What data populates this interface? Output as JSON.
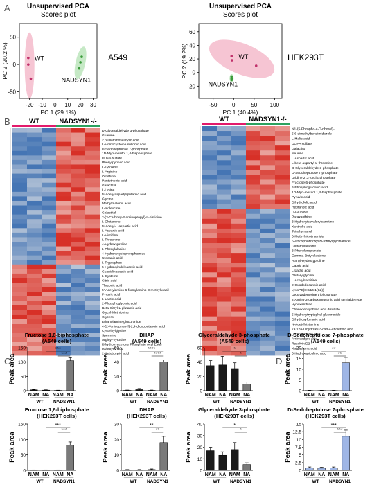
{
  "panels": {
    "A": "A",
    "B": "B",
    "C": "C",
    "D": "D"
  },
  "colors": {
    "wt_ellipse": "#f4b6c8",
    "nadsyn_ellipse": "#b8e3b8",
    "wt_bar": "#1a1a1a",
    "nadsyn_bar": "#7a7a7a",
    "sedo_bar": "#9fb6e6",
    "heat_high": "#d73027",
    "heat_low": "#4575b4",
    "wt_group": "#e31a6b",
    "nadsyn_group": "#2ca25f"
  },
  "pca": [
    {
      "title1": "Unsupervised PCA",
      "title2": "Scores plot",
      "cell": "A549",
      "xlabel": "PC 1 (29.1%)",
      "ylabel": "PC 2 (20.2 %)",
      "xticks": [
        "-20",
        "-10",
        "0",
        "10",
        "20",
        "30"
      ],
      "yticks": [
        "-50",
        "0",
        "50"
      ],
      "group_wt": "WT",
      "group_nadsyn": "NADSYN1",
      "wt_points": [
        [
          -21,
          12
        ],
        [
          -21,
          0
        ],
        [
          -19,
          -26
        ]
      ],
      "nadsyn_points": [
        [
          21,
          14
        ],
        [
          20,
          4
        ],
        [
          19,
          -7
        ]
      ],
      "xlim": [
        -28,
        33
      ],
      "ylim": [
        -62,
        75
      ]
    },
    {
      "title1": "Unsupervised PCA",
      "title2": "Scores plot",
      "cell": "HEK293T",
      "xlabel": "PC 1 (40.4%)",
      "ylabel": "PC 2 (19.2%)",
      "xticks": [
        "-50",
        "0",
        "50",
        "100"
      ],
      "yticks": [
        "-20",
        "0",
        "20",
        "40",
        "60"
      ],
      "group_wt": "WT",
      "group_nadsyn": "NADSYN1",
      "wt_points": [
        [
          -5,
          24
        ],
        [
          -4,
          18
        ],
        [
          55,
          10
        ]
      ],
      "nadsyn_points": [
        [
          -5,
          -6
        ],
        [
          -5,
          -9
        ],
        [
          -5,
          -11
        ]
      ],
      "xlim": [
        -85,
        118
      ],
      "ylim": [
        -38,
        72
      ]
    }
  ],
  "heatmaps": [
    {
      "group_wt": "WT",
      "group_nadsyn": "NADSYN1-/-",
      "top_rows": 30,
      "metabolites": [
        "D-Glyceraldehyde 3-phosphate",
        "Guanine",
        "2,3-Diaminosalicylic acid",
        "L-Homocysteine sulfonic acid",
        "D-Sedoheptulose 7-phosphate",
        "1D-Myo-inositol 1,4-bisphosphate",
        "DOPA sulfate",
        "Phenylpyruvic acid",
        "L-Tyrosine",
        "L-Arginine",
        "Ornithine",
        "Pantothenic acid",
        "Galactitol",
        "L-Lysine",
        "N-Acetylaspartylglutamic acid",
        "Glycine",
        "Methylmalonic acid",
        "L-Isoleucine",
        "Galactitol",
        "2-(3-Carboxy-3-aminopropyl)-L-histidine",
        "L-Glutamine",
        "N-Acetyl-L-aspartic acid",
        "L-Aspartic acid",
        "L-Histidine",
        "L-Threonine",
        "4-Hydroxyproline",
        "L-Phenylalanine",
        "4-Hydroxycyclophosphamide",
        "Urocanic acid",
        "L-Tryptophan",
        "5-Hydroxyindoleacetic acid",
        "Guanidinoacetic acid",
        "L-Cysteine",
        "Citric acid",
        "Threonic acid",
        "5'-Acetylamino-6-formylamino-3-methyluracil",
        "Pyruvic acid",
        "L-Lactic acid",
        "2-Phosphoglyceric acid",
        "Beta-Citryl-L-glutamic acid",
        "Glycyl-Methionine",
        "Glycerol",
        "Ethanolamine glucuronide",
        "4-(2-Aminophenyl)-2,4-dioxobutanoic acid",
        "Cysteinylglycine",
        "Spermine",
        "Arginyl-Tyrosine",
        "Dihydroxyacetone Phosphate Acyl Ester",
        "Isobutyric acid",
        "2-Ketobutyric acid"
      ]
    },
    {
      "group_wt": "WT",
      "group_nadsyn": "NADSYN1-/-",
      "top_rows": 30,
      "metabolites": [
        "N1-(5-Phospho-a-D-ribosyl)-",
        "5,6-dimethylbenzimidazole",
        "L-Malic acid",
        "DOPA sulfate",
        "Galactitol",
        "Neurine",
        "L-Aspartic acid",
        "L-beta-aspartyl-L-threonine",
        "D-Glyceraldehyde 3-phosphate",
        "D-Sedoheptulose 7-phosphate",
        "Uridine 2',3'-cyclic phosphate",
        "Fructose 6-phosphate",
        "6-Phosphogluconic acid",
        "1D-Myo-inositol 1,4-bisphosphate",
        "Pyruvic acid",
        "Dihydrofolic acid",
        "Heptanoic acid",
        "D-Glucose",
        "Paraxanthine",
        "3-Hydroxyisovalerylcarnitine",
        "Xanthylic acid",
        "Tetrahymanol",
        "6-Methylnicotinamide",
        "5'-Phosphoribosyl-N-formylglycinamide",
        "Glutamylalanine",
        "3-Phenylpropionate",
        "Gamma-Butyrolactone",
        "Alanyl-Hydroxyproline",
        "Capric acid",
        "L-Lactic acid",
        "Glutarylglycine",
        "L-Acetylcarnitine",
        "2-Oxododecanoic acid",
        "LysoPE(0:0/14:1(9Z))",
        "Deoxyadenosine triphosphate",
        "2-Amino-3-carboxymuconic acid semialdehyde",
        "Hypoxanthine",
        "Chenodeoxycholic acid disulfate",
        "5-Hydroxytryptophol glucuronide",
        "Dihydroxyfumaric acid",
        "N-Acetylhistamine",
        "7a,12a-Dihydroxy-3-oxo-4-cholenoic acid",
        "Uridinoiucanic acid",
        "Aminoadipic acid",
        "Resolvin D2",
        "Xanthurenic acid",
        "3-Hydroxypicolinic acid"
      ]
    }
  ],
  "bar_panels": [
    {
      "title1": "Fructose 1,6-biphosphate",
      "title2": "(A549 cells)",
      "ylabel": "Peak area",
      "values": [
        3,
        2,
        1,
        105
      ],
      "errors": [
        1.5,
        1,
        0.8,
        10
      ],
      "yticks": [
        "0",
        "50",
        "100",
        "150"
      ],
      "ylim": [
        0,
        150
      ],
      "sig": [
        {
          "text": "***",
          "from": 1,
          "to": 3
        },
        {
          "text": "***",
          "from": 2,
          "to": 3
        }
      ],
      "categories": [
        "NAM",
        "NA",
        "NAM",
        "NA"
      ],
      "groups": [
        "WT",
        "NADSYN1"
      ],
      "highlight": false
    },
    {
      "title1": "DHAP",
      "title2": "(A549 cells)",
      "ylabel": "Peak area",
      "values": [
        0.5,
        1.5,
        0.5,
        40
      ],
      "errors": [
        0.4,
        1.5,
        0.4,
        3
      ],
      "yticks": [
        "0",
        "20",
        "40",
        "60"
      ],
      "ylim": [
        0,
        60
      ],
      "sig": [
        {
          "text": "****",
          "from": 1,
          "to": 3
        },
        {
          "text": "****",
          "from": 2,
          "to": 3
        }
      ],
      "categories": [
        "NAM",
        "NA",
        "NAM",
        "NA"
      ],
      "groups": [
        "WT",
        "NADSYN1"
      ],
      "highlight": false
    },
    {
      "title1": "Glyceraldehyde 3-phosphate",
      "title2": "(A549 cells)",
      "ylabel": "Peak area",
      "values": [
        35,
        36,
        31,
        9
      ],
      "errors": [
        7,
        12,
        8,
        3
      ],
      "yticks": [
        "0",
        "20",
        "40",
        "60"
      ],
      "ylim": [
        0,
        60
      ],
      "sig": [
        {
          "text": "*",
          "from": 1,
          "to": 3
        },
        {
          "text": "*",
          "from": 2,
          "to": 3
        }
      ],
      "categories": [
        "NAM",
        "NA",
        "NAM",
        "NA"
      ],
      "groups": [
        "WT",
        "NADSYN1"
      ],
      "highlight": false
    },
    {
      "title1": "D-Sedoheptulose 7-phosphate",
      "title2": "(A549 cells)",
      "ylabel": "Peak area",
      "values": [
        0.1,
        0.1,
        0.1,
        13
      ],
      "errors": [
        0.1,
        0.1,
        0.1,
        2.5
      ],
      "yticks": [
        "0",
        "5",
        "10",
        "15",
        "20"
      ],
      "ylim": [
        0,
        20
      ],
      "sig": [
        {
          "text": "**",
          "from": 1,
          "to": 3
        },
        {
          "text": "**",
          "from": 2,
          "to": 3
        }
      ],
      "categories": [
        "NAM",
        "NA",
        "NAM",
        "NA"
      ],
      "groups": [
        "WT",
        "NADSYN1"
      ],
      "highlight": true
    },
    {
      "title1": "Fructose 1,6-biphosphate",
      "title2": "(HEK293T cells)",
      "ylabel": "Peak area",
      "values": [
        1,
        1,
        1,
        82
      ],
      "errors": [
        0.5,
        0.5,
        0.5,
        10
      ],
      "yticks": [
        "0",
        "50",
        "100",
        "150"
      ],
      "ylim": [
        0,
        150
      ],
      "sig": [
        {
          "text": "***",
          "from": 1,
          "to": 3
        },
        {
          "text": "***",
          "from": 2,
          "to": 3
        }
      ],
      "categories": [
        "NAM",
        "NA",
        "NAM",
        "NA"
      ],
      "groups": [
        "WT",
        "NADSYN1"
      ],
      "highlight": false
    },
    {
      "title1": "DHAP",
      "title2": "(HEK293T cells)",
      "ylabel": "Peak area",
      "values": [
        0.3,
        0.3,
        0.5,
        18
      ],
      "errors": [
        0.2,
        0.2,
        0.4,
        4
      ],
      "yticks": [
        "0",
        "10",
        "20",
        "30"
      ],
      "ylim": [
        0,
        30
      ],
      "sig": [
        {
          "text": "**",
          "from": 1,
          "to": 3
        },
        {
          "text": "**",
          "from": 2,
          "to": 3
        }
      ],
      "categories": [
        "NAM",
        "NA",
        "NAM",
        "NA"
      ],
      "groups": [
        "WT",
        "NADSYN1"
      ],
      "highlight": false
    },
    {
      "title1": "Glyceraldehyde 3-phosphate",
      "title2": "(HEK293T cells)",
      "ylabel": "Peak area",
      "values": [
        17,
        13,
        18,
        5
      ],
      "errors": [
        3,
        3,
        6,
        1.5
      ],
      "yticks": [
        "0",
        "10",
        "20",
        "30",
        "40"
      ],
      "ylim": [
        0,
        40
      ],
      "sig": [
        {
          "text": "*",
          "from": 1,
          "to": 3
        },
        {
          "text": "*",
          "from": 2,
          "to": 3
        }
      ],
      "categories": [
        "NAM",
        "NA",
        "NAM",
        "NA"
      ],
      "groups": [
        "WT",
        "NADSYN1"
      ],
      "highlight": false
    },
    {
      "title1": "D-Sedoheptulose 7-phosphate",
      "title2": "(HEK293T cells)",
      "ylabel": "Peak area",
      "values": [
        0.8,
        0.7,
        0.8,
        11
      ],
      "errors": [
        0.3,
        0.3,
        0.3,
        2
      ],
      "yticks": [
        "0",
        "2.5",
        "5",
        "7.5",
        "10",
        "12.5",
        "15"
      ],
      "ylim": [
        0,
        15
      ],
      "sig": [
        {
          "text": "***",
          "from": 1,
          "to": 3
        },
        {
          "text": "***",
          "from": 2,
          "to": 3
        }
      ],
      "categories": [
        "NAM",
        "NA",
        "NAM",
        "NA"
      ],
      "groups": [
        "WT",
        "NADSYN1"
      ],
      "highlight": true
    }
  ],
  "chart_data": [
    {
      "type": "scatter",
      "title": "Unsupervised PCA Scores plot",
      "subtitle": "A549",
      "xlabel": "PC 1 (29.1%)",
      "ylabel": "PC 2 (20.2 %)",
      "series": [
        {
          "name": "WT",
          "x": [
            -21,
            -21,
            -19
          ],
          "y": [
            12,
            0,
            -26
          ]
        },
        {
          "name": "NADSYN1",
          "x": [
            21,
            20,
            19
          ],
          "y": [
            14,
            4,
            -7
          ]
        }
      ]
    },
    {
      "type": "scatter",
      "title": "Unsupervised PCA Scores plot",
      "subtitle": "HEK293T",
      "xlabel": "PC 1 (40.4%)",
      "ylabel": "PC 2 (19.2%)",
      "series": [
        {
          "name": "WT",
          "x": [
            -5,
            -4,
            55
          ],
          "y": [
            24,
            18,
            10
          ]
        },
        {
          "name": "NADSYN1",
          "x": [
            -5,
            -5,
            -5
          ],
          "y": [
            -6,
            -9,
            -11
          ]
        }
      ]
    },
    {
      "type": "heatmap",
      "categories": [
        "WT",
        "NADSYN1-/-"
      ]
    },
    {
      "type": "heatmap",
      "categories": [
        "WT",
        "NADSYN1-/-"
      ]
    },
    {
      "type": "bar",
      "title": "Fructose 1,6-biphosphate (A549 cells)",
      "ylabel": "Peak area",
      "categories": [
        "NAM",
        "NA",
        "NAM",
        "NA"
      ],
      "values": [
        3,
        2,
        1,
        105
      ],
      "ylim": [
        0,
        150
      ]
    },
    {
      "type": "bar",
      "title": "DHAP (A549 cells)",
      "ylabel": "Peak area",
      "categories": [
        "NAM",
        "NA",
        "NAM",
        "NA"
      ],
      "values": [
        0.5,
        1.5,
        0.5,
        40
      ],
      "ylim": [
        0,
        60
      ]
    },
    {
      "type": "bar",
      "title": "Glyceraldehyde 3-phosphate (A549 cells)",
      "ylabel": "Peak area",
      "categories": [
        "NAM",
        "NA",
        "NAM",
        "NA"
      ],
      "values": [
        35,
        36,
        31,
        9
      ],
      "ylim": [
        0,
        60
      ]
    },
    {
      "type": "bar",
      "title": "D-Sedoheptulose 7-phosphate (A549 cells)",
      "ylabel": "Peak area",
      "categories": [
        "NAM",
        "NA",
        "NAM",
        "NA"
      ],
      "values": [
        0.1,
        0.1,
        0.1,
        13
      ],
      "ylim": [
        0,
        20
      ]
    },
    {
      "type": "bar",
      "title": "Fructose 1,6-biphosphate (HEK293T cells)",
      "ylabel": "Peak area",
      "categories": [
        "NAM",
        "NA",
        "NAM",
        "NA"
      ],
      "values": [
        1,
        1,
        1,
        82
      ],
      "ylim": [
        0,
        150
      ]
    },
    {
      "type": "bar",
      "title": "DHAP (HEK293T cells)",
      "ylabel": "Peak area",
      "categories": [
        "NAM",
        "NA",
        "NAM",
        "NA"
      ],
      "values": [
        0.3,
        0.3,
        0.5,
        18
      ],
      "ylim": [
        0,
        30
      ]
    },
    {
      "type": "bar",
      "title": "Glyceraldehyde 3-phosphate (HEK293T cells)",
      "ylabel": "Peak area",
      "categories": [
        "NAM",
        "NA",
        "NAM",
        "NA"
      ],
      "values": [
        17,
        13,
        18,
        5
      ],
      "ylim": [
        0,
        40
      ]
    },
    {
      "type": "bar",
      "title": "D-Sedoheptulose 7-phosphate (HEK293T cells)",
      "ylabel": "Peak area",
      "categories": [
        "NAM",
        "NA",
        "NAM",
        "NA"
      ],
      "values": [
        0.8,
        0.7,
        0.8,
        11
      ],
      "ylim": [
        0,
        15
      ]
    }
  ]
}
